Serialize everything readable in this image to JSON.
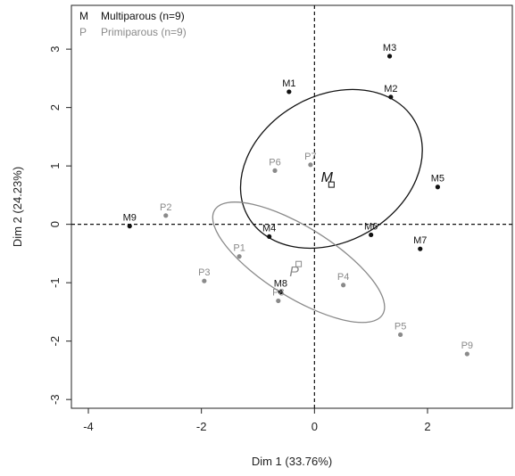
{
  "chart_data": {
    "type": "scatter",
    "xlabel": "Dim 1 (33.76%)",
    "ylabel": "Dim 2 (24.23%)",
    "xlim": [
      -4.3,
      3.5
    ],
    "ylim": [
      -3.15,
      3.75
    ],
    "xticks": [
      "-4",
      "-2",
      "0",
      "2"
    ],
    "xtick_values": [
      -4,
      -2,
      0,
      2
    ],
    "yticks": [
      "-3",
      "-2",
      "-1",
      "0",
      "1",
      "2",
      "3"
    ],
    "ytick_values": [
      -3,
      -2,
      -1,
      0,
      1,
      2,
      3
    ],
    "reference_lines": {
      "x": 0,
      "y": 0,
      "style": "dashed"
    },
    "legend": {
      "placement": "top-left",
      "entries": [
        {
          "symbol": "M",
          "label": "Multiparous (n=9)",
          "color": "#111111"
        },
        {
          "symbol": "P",
          "label": "Primiparous (n=9)",
          "color": "#8a8a8a"
        }
      ]
    },
    "series": [
      {
        "name": "Multiparous (n=9)",
        "color": "#111111",
        "points": [
          {
            "label": "M1",
            "x": -0.45,
            "y": 2.27
          },
          {
            "label": "M2",
            "x": 1.35,
            "y": 2.18
          },
          {
            "label": "M3",
            "x": 1.33,
            "y": 2.88
          },
          {
            "label": "M4",
            "x": -0.8,
            "y": -0.21
          },
          {
            "label": "M5",
            "x": 2.18,
            "y": 0.64
          },
          {
            "label": "M6",
            "x": 1.0,
            "y": -0.18
          },
          {
            "label": "M7",
            "x": 1.87,
            "y": -0.42
          },
          {
            "label": "M8",
            "x": -0.6,
            "y": -1.16
          },
          {
            "label": "M9",
            "x": -3.27,
            "y": -0.03
          }
        ],
        "centroid": {
          "label": "M",
          "x": 0.3,
          "y": 0.68
        },
        "ellipse": {
          "cx": 0.3,
          "cy": 0.95,
          "rx": 1.7,
          "ry": 1.25,
          "angle_deg": -30
        }
      },
      {
        "name": "Primiparous (n=9)",
        "color": "#8a8a8a",
        "points": [
          {
            "label": "P1",
            "x": -1.33,
            "y": -0.55
          },
          {
            "label": "P2",
            "x": -2.63,
            "y": 0.15
          },
          {
            "label": "P3",
            "x": -1.95,
            "y": -0.97
          },
          {
            "label": "P4",
            "x": 0.51,
            "y": -1.04
          },
          {
            "label": "P5",
            "x": 1.52,
            "y": -1.89
          },
          {
            "label": "P6",
            "x": -0.7,
            "y": 0.92
          },
          {
            "label": "P7",
            "x": -0.07,
            "y": 1.02
          },
          {
            "label": "P8",
            "x": -0.64,
            "y": -1.31
          },
          {
            "label": "P9",
            "x": 2.7,
            "y": -2.22
          }
        ],
        "centroid": {
          "label": "P",
          "x": -0.28,
          "y": -0.68
        },
        "ellipse": {
          "cx": -0.28,
          "cy": -0.65,
          "rx": 1.75,
          "ry": 0.6,
          "angle_deg": 32
        }
      }
    ]
  }
}
